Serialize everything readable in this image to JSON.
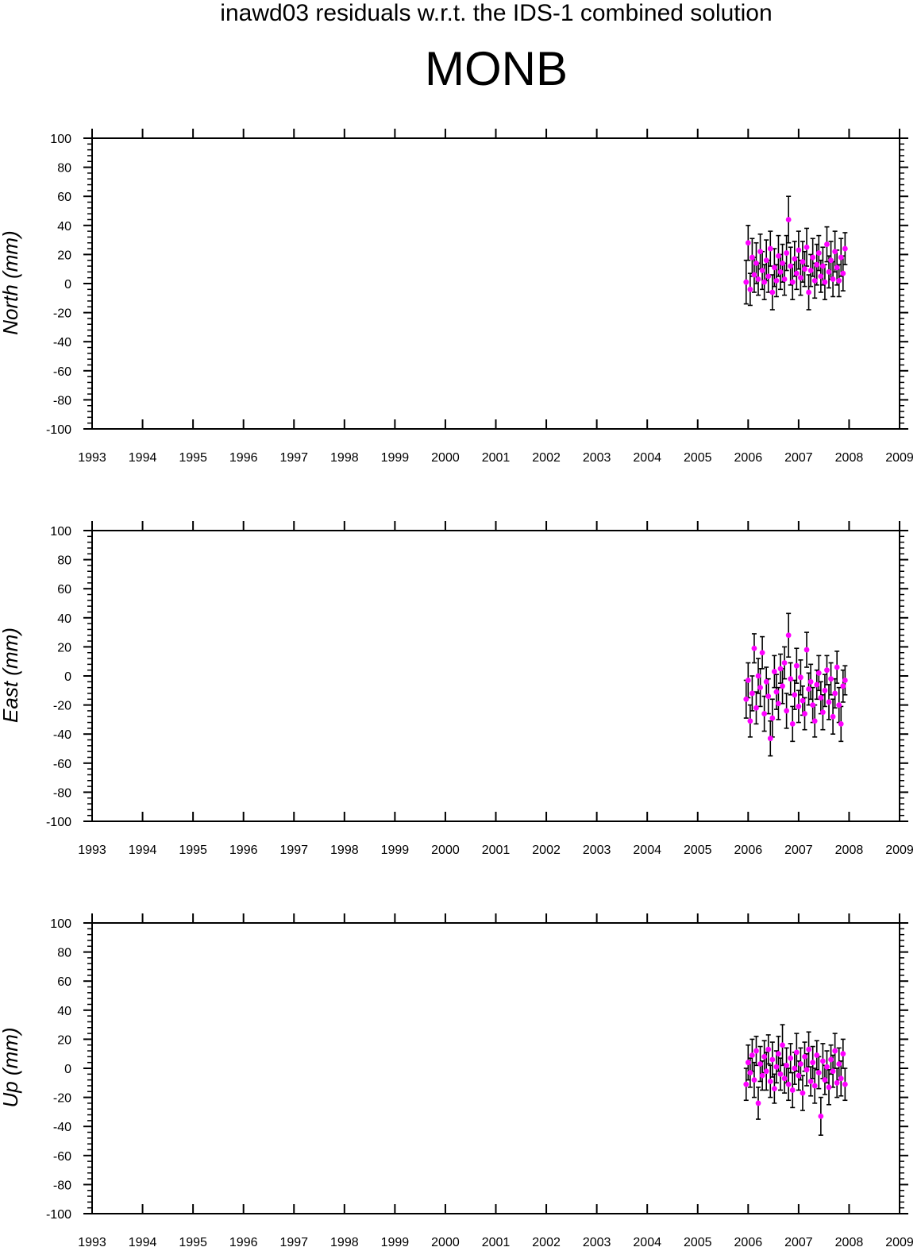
{
  "suptitle": "inawd03 residuals w.r.t. the IDS-1 combined solution",
  "station": "MONB",
  "colors": {
    "frame": "#000000",
    "error_bar": "#000000",
    "marker": "#ff00ff"
  },
  "chart_data": [
    {
      "type": "scatter",
      "ylabel": "North (mm)",
      "xlim": [
        1993,
        2009
      ],
      "ylim": [
        -100,
        100
      ],
      "x_ticks": [
        "1993",
        "1994",
        "1995",
        "1996",
        "1997",
        "1998",
        "1999",
        "2000",
        "2001",
        "2002",
        "2003",
        "2004",
        "2005",
        "2006",
        "2007",
        "2008",
        "2009"
      ],
      "y_ticks": [
        "100",
        "80",
        "60",
        "40",
        "20",
        "0",
        "-20",
        "-40",
        "-60",
        "-80",
        "-100"
      ],
      "grid": false,
      "series": [
        {
          "x": [
            2005.96,
            2006.0,
            2006.04,
            2006.08,
            2006.12,
            2006.16,
            2006.2,
            2006.24,
            2006.28,
            2006.32,
            2006.36,
            2006.4,
            2006.44,
            2006.48,
            2006.52,
            2006.56,
            2006.6,
            2006.64,
            2006.68,
            2006.72,
            2006.76,
            2006.8,
            2006.84,
            2006.88,
            2006.92,
            2006.96,
            2007.0,
            2007.04,
            2007.08,
            2007.12,
            2007.16,
            2007.2,
            2007.24,
            2007.28,
            2007.32,
            2007.36,
            2007.4,
            2007.44,
            2007.48,
            2007.52,
            2007.56,
            2007.6,
            2007.64,
            2007.68,
            2007.72,
            2007.76,
            2007.8,
            2007.84,
            2007.88,
            2007.92
          ],
          "y": [
            1,
            28,
            -4,
            18,
            6,
            14,
            3,
            22,
            9,
            1,
            16,
            5,
            24,
            -6,
            11,
            2,
            19,
            8,
            14,
            3,
            21,
            44,
            12,
            1,
            17,
            7,
            23,
            4,
            15,
            10,
            25,
            -6,
            9,
            18,
            2,
            13,
            21,
            5,
            12,
            1,
            27,
            8,
            16,
            3,
            22,
            11,
            2,
            18,
            7,
            24
          ],
          "err": [
            15,
            12,
            11,
            13,
            12,
            14,
            11,
            12,
            13,
            12,
            14,
            11,
            12,
            12,
            13,
            11,
            14,
            12,
            13,
            11,
            12,
            16,
            13,
            12,
            12,
            11,
            13,
            12,
            14,
            12,
            13,
            12,
            11,
            13,
            12,
            14,
            12,
            11,
            13,
            12,
            12,
            11,
            13,
            12,
            14,
            12,
            11,
            13,
            12,
            11
          ]
        }
      ]
    },
    {
      "type": "scatter",
      "ylabel": "East (mm)",
      "xlim": [
        1993,
        2009
      ],
      "ylim": [
        -100,
        100
      ],
      "x_ticks": [
        "1993",
        "1994",
        "1995",
        "1996",
        "1997",
        "1998",
        "1999",
        "2000",
        "2001",
        "2002",
        "2003",
        "2004",
        "2005",
        "2006",
        "2007",
        "2008",
        "2009"
      ],
      "y_ticks": [
        "100",
        "80",
        "60",
        "40",
        "20",
        "0",
        "-20",
        "-40",
        "-60",
        "-80",
        "-100"
      ],
      "grid": false,
      "series": [
        {
          "x": [
            2005.96,
            2006.0,
            2006.04,
            2006.08,
            2006.12,
            2006.16,
            2006.2,
            2006.24,
            2006.28,
            2006.32,
            2006.36,
            2006.4,
            2006.44,
            2006.48,
            2006.52,
            2006.56,
            2006.6,
            2006.64,
            2006.68,
            2006.72,
            2006.76,
            2006.8,
            2006.84,
            2006.88,
            2006.92,
            2006.96,
            2007.0,
            2007.04,
            2007.08,
            2007.12,
            2007.16,
            2007.2,
            2007.24,
            2007.28,
            2007.32,
            2007.36,
            2007.4,
            2007.44,
            2007.48,
            2007.52,
            2007.56,
            2007.6,
            2007.64,
            2007.68,
            2007.72,
            2007.76,
            2007.8,
            2007.84,
            2007.88,
            2007.92
          ],
          "y": [
            -16,
            -3,
            -31,
            -12,
            19,
            -22,
            0,
            -8,
            16,
            -26,
            -4,
            -14,
            -43,
            -29,
            3,
            -11,
            -19,
            5,
            -7,
            9,
            -24,
            28,
            -2,
            -33,
            -13,
            7,
            -21,
            -1,
            -17,
            -26,
            18,
            -9,
            -4,
            -20,
            -31,
            -6,
            2,
            -15,
            -25,
            -10,
            4,
            -18,
            -2,
            -28,
            -12,
            6,
            -20,
            -33,
            -7,
            -3
          ],
          "err": [
            13,
            12,
            11,
            12,
            10,
            11,
            12,
            13,
            11,
            12,
            10,
            12,
            12,
            13,
            11,
            12,
            11,
            10,
            12,
            11,
            12,
            15,
            11,
            12,
            10,
            12,
            11,
            12,
            10,
            11,
            12,
            11,
            12,
            12,
            11,
            10,
            12,
            11,
            12,
            11,
            10,
            12,
            11,
            12,
            10,
            11,
            12,
            12,
            11,
            10
          ]
        }
      ]
    },
    {
      "type": "scatter",
      "ylabel": "Up (mm)",
      "xlim": [
        1993,
        2009
      ],
      "ylim": [
        -100,
        100
      ],
      "x_ticks": [
        "1993",
        "1994",
        "1995",
        "1996",
        "1997",
        "1998",
        "1999",
        "2000",
        "2001",
        "2002",
        "2003",
        "2004",
        "2005",
        "2006",
        "2007",
        "2008",
        "2009"
      ],
      "y_ticks": [
        "100",
        "80",
        "60",
        "40",
        "20",
        "0",
        "-20",
        "-40",
        "-60",
        "-80",
        "-100"
      ],
      "grid": false,
      "series": [
        {
          "x": [
            2005.96,
            2006.0,
            2006.04,
            2006.08,
            2006.12,
            2006.16,
            2006.2,
            2006.24,
            2006.28,
            2006.32,
            2006.36,
            2006.4,
            2006.44,
            2006.48,
            2006.52,
            2006.56,
            2006.6,
            2006.64,
            2006.68,
            2006.72,
            2006.76,
            2006.8,
            2006.84,
            2006.88,
            2006.92,
            2006.96,
            2007.0,
            2007.04,
            2007.08,
            2007.12,
            2007.16,
            2007.2,
            2007.24,
            2007.28,
            2007.32,
            2007.36,
            2007.4,
            2007.44,
            2007.48,
            2007.52,
            2007.56,
            2007.6,
            2007.64,
            2007.68,
            2007.72,
            2007.76,
            2007.8,
            2007.84,
            2007.88,
            2007.92
          ],
          "y": [
            -11,
            4,
            -3,
            9,
            -8,
            12,
            -24,
            3,
            -5,
            8,
            -2,
            13,
            -9,
            6,
            -14,
            1,
            10,
            -4,
            16,
            -7,
            2,
            -11,
            7,
            -15,
            0,
            11,
            -5,
            3,
            -17,
            8,
            -1,
            13,
            -9,
            4,
            -12,
            9,
            -3,
            -33,
            5,
            -8,
            1,
            -13,
            6,
            -2,
            12,
            -10,
            3,
            -7,
            10,
            -11
          ],
          "err": [
            11,
            12,
            10,
            11,
            12,
            10,
            11,
            12,
            10,
            11,
            13,
            10,
            11,
            12,
            10,
            11,
            12,
            11,
            14,
            10,
            12,
            11,
            10,
            12,
            11,
            13,
            10,
            11,
            12,
            10,
            11,
            12,
            10,
            11,
            12,
            10,
            11,
            13,
            12,
            10,
            11,
            12,
            10,
            11,
            12,
            10,
            11,
            12,
            10,
            11
          ]
        }
      ]
    }
  ]
}
